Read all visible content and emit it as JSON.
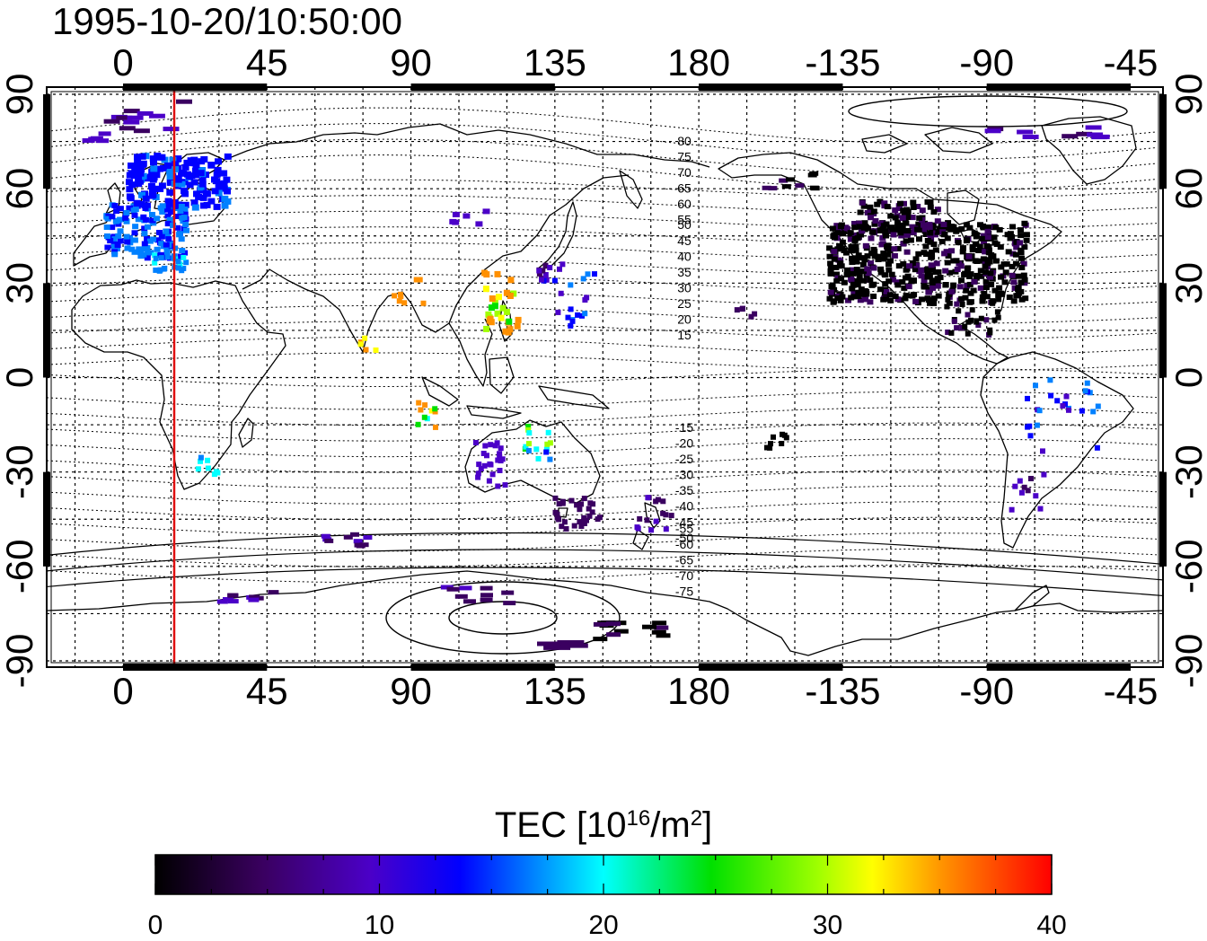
{
  "map": {
    "timestamp": "1995-10-20/10:50:00",
    "lon_ticks": [
      "0",
      "45",
      "90",
      "135",
      "180",
      "-135",
      "-90",
      "-45"
    ],
    "lat_ticks": [
      "90",
      "60",
      "30",
      "0",
      "-30",
      "-60",
      "-90"
    ],
    "geomag_labels_north": [
      "80",
      "75",
      "70",
      "65",
      "60",
      "55",
      "50",
      "45",
      "40",
      "35",
      "30",
      "25",
      "20",
      "15"
    ],
    "geomag_labels_south": [
      "-15",
      "-20",
      "-25",
      "-30",
      "-35",
      "-40",
      "-45",
      "-50",
      "-55",
      "-60",
      "-65",
      "-70",
      "-75"
    ],
    "terminator_longitude": 16,
    "terminator_color": "#e01010",
    "colorbar": {
      "title_prefix": "TEC  [10",
      "title_sup1": "16",
      "title_mid": "/m",
      "title_sup2": "2",
      "title_suffix": "]",
      "min": 0,
      "max": 40,
      "tick_labels": [
        "0",
        "10",
        "20",
        "30",
        "40"
      ],
      "colors": [
        "#000000",
        "#4b0082",
        "#0000ff",
        "#00ffff",
        "#00ff00",
        "#ffff00",
        "#ff0000"
      ]
    }
  }
}
